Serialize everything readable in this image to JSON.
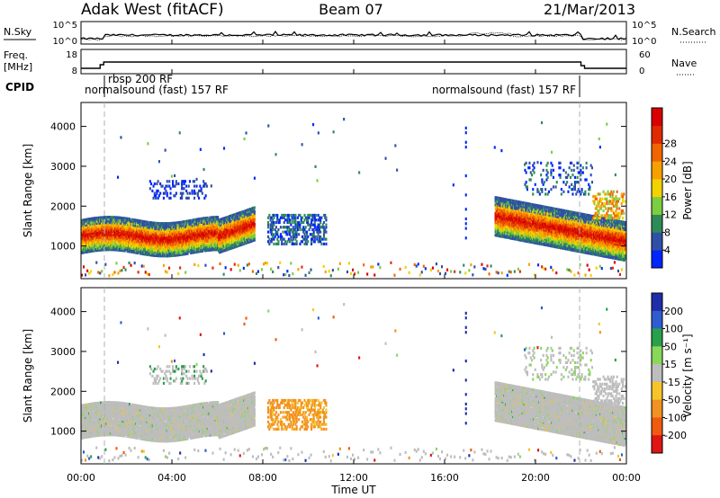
{
  "header": {
    "station": "Adak West (fitACF)",
    "beam": "Beam 07",
    "date": "21/Mar/2013"
  },
  "panels": {
    "sky": {
      "left_label": "N.Sky",
      "right_label": "N.Search",
      "left_ticks": [
        "10^5",
        "10^0"
      ],
      "right_ticks": [
        "10^5",
        "10^0"
      ]
    },
    "freq": {
      "left_label_1": "Freq.",
      "left_label_2": "[MHz]",
      "right_label": "Nave",
      "left_ticks": [
        "18",
        "8"
      ],
      "right_ticks": [
        "60",
        "0"
      ]
    },
    "cpid": {
      "label": "CPID",
      "programs": [
        {
          "name": "normalsound (fast) 157 RF",
          "start_hour": 0.0,
          "end_hour": 1.0
        },
        {
          "name": "rbsp 200 RF",
          "start_hour": 1.0,
          "end_hour": 22.0
        },
        {
          "name": "normalsound (fast) 157 RF",
          "start_hour": 22.0,
          "end_hour": 24.0
        }
      ]
    }
  },
  "chart_data": [
    {
      "type": "heatmap",
      "name": "power",
      "ylabel": "Slant Range [km]",
      "yticks": [
        1000,
        2000,
        3000,
        4000
      ],
      "ylim": [
        180,
        4600
      ],
      "xlim": [
        0,
        24
      ],
      "colorbar": {
        "label": "Power [dB]",
        "ticks": [
          "4",
          "8",
          "12",
          "16",
          "20",
          "24",
          "28"
        ],
        "colors": [
          "#0026ff",
          "#3050a8",
          "#2e8b57",
          "#7ccd40",
          "#f2d200",
          "#f7a000",
          "#f06500",
          "#e02a00",
          "#d80000"
        ]
      }
    },
    {
      "type": "heatmap",
      "name": "velocity",
      "ylabel": "Slant Range [km]",
      "yticks": [
        1000,
        2000,
        3000,
        4000
      ],
      "ylim": [
        180,
        4600
      ],
      "xlim": [
        0,
        24
      ],
      "colorbar": {
        "label": "Velocity [m s⁻¹]",
        "ticks": [
          "200",
          "100",
          "50",
          "15",
          "-15",
          "-50",
          "-100",
          "-200"
        ],
        "colors": [
          "#1f2ea8",
          "#2f5cd0",
          "#29a04a",
          "#88d85a",
          "#bdbdbd",
          "#f5c52a",
          "#f29220",
          "#f05a10",
          "#e01515"
        ]
      }
    }
  ],
  "x_axis": {
    "label": "Time UT",
    "ticks": [
      "00:00",
      "04:00",
      "08:00",
      "12:00",
      "16:00",
      "20:00",
      "00:00"
    ]
  },
  "colors": {
    "axis": "#000000",
    "divider": "#b0b0b0"
  }
}
